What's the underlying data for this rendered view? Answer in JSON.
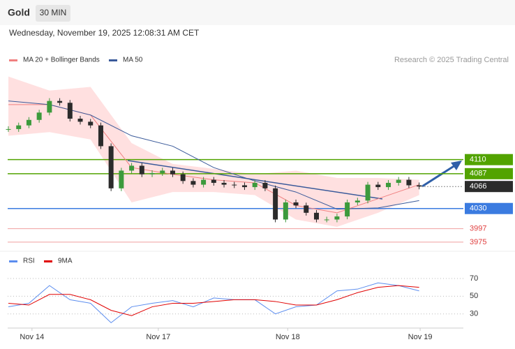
{
  "chart_data": {
    "type": "candlestick",
    "title": "Gold",
    "timeframe": "30 MIN",
    "subtitle": "Wednesday, November 19, 2025 12:08:31 AM CET",
    "source": "Research © 2025 Trading Central",
    "xlim": [
      0,
      40.5
    ],
    "xticks": [
      {
        "value": 2.3,
        "label": "Nov 14"
      },
      {
        "value": 14.6,
        "label": "Nov 17"
      },
      {
        "value": 27.2,
        "label": "Nov 18"
      },
      {
        "value": 40.1,
        "label": "Nov 19"
      }
    ],
    "ylim": [
      3960,
      4257
    ],
    "price": {
      "up_color": "#3c9a3c",
      "down_color": "#2b2b2b",
      "x": [
        0,
        1,
        2,
        3,
        4,
        5,
        6,
        7,
        8,
        9,
        10,
        11,
        12,
        13,
        14,
        15,
        16,
        17,
        18,
        19,
        20,
        21,
        22,
        23,
        24,
        25,
        26,
        27,
        28,
        29,
        30,
        31,
        32,
        33,
        34,
        35,
        36,
        37,
        38,
        39,
        40
      ],
      "values": [
        4160,
        4166,
        4175,
        4187,
        4206,
        4203,
        4177,
        4172,
        4166,
        4132,
        4063,
        4092,
        4100,
        4086,
        4088,
        4092,
        4086,
        4075,
        4069,
        4077,
        4072,
        4069,
        4068,
        4065,
        4072,
        4063,
        4012,
        4040,
        4035,
        4023,
        4012,
        4012,
        4017,
        4040,
        4043,
        4069,
        4065,
        4072,
        4077,
        4068,
        4066
      ]
    },
    "series": [
      {
        "name": "MA 20 + Bollinger Bands",
        "color": "#f08080",
        "band_color": "#ffe0e0",
        "x": [
          0,
          4,
          8,
          12,
          16,
          20,
          24,
          28,
          32,
          36,
          40
        ],
        "values": [
          4200,
          4200,
          4183,
          4097,
          4086,
          4077,
          4072,
          4035,
          4023,
          4046,
          4069
        ],
        "upper": [
          4246,
          4223,
          4229,
          4137,
          4103,
          4095,
          4086,
          4092,
          4080,
          4080,
          4077
        ],
        "lower": [
          4149,
          4155,
          4143,
          4040,
          4057,
          4057,
          4052,
          4012,
          4000,
          4023,
          4052
        ]
      },
      {
        "name": "MA 50",
        "color": "#3a5a9a",
        "x": [
          0,
          4,
          8,
          12,
          16,
          20,
          24,
          28,
          32,
          36,
          40
        ],
        "values": [
          4206,
          4200,
          4183,
          4149,
          4132,
          4097,
          4075,
          4057,
          4029,
          4031,
          4043
        ]
      }
    ],
    "levels": [
      {
        "value": 4110,
        "color": "#52a300",
        "boxed": true
      },
      {
        "value": 4087,
        "color": "#52a300",
        "boxed": true
      },
      {
        "value": 4066,
        "color": "#2b2b2b",
        "boxed": true,
        "dotted": true
      },
      {
        "value": 4030,
        "color": "#3b7be0",
        "boxed": true
      },
      {
        "value": 3997,
        "color": "#e04040",
        "boxed": false
      },
      {
        "value": 3975,
        "color": "#e04040",
        "boxed": false
      }
    ],
    "rsi": {
      "ylim": [
        14,
        81
      ],
      "yticks": [
        30,
        50,
        70
      ],
      "series": [
        {
          "name": "RSI",
          "color": "#5b8def",
          "x": [
            0,
            2,
            4,
            6,
            8,
            10,
            12,
            14,
            16,
            18,
            20,
            22,
            24,
            26,
            28,
            30,
            32,
            34,
            36,
            38,
            40
          ],
          "values": [
            38,
            42,
            62,
            46,
            42,
            20,
            38,
            42,
            45,
            38,
            48,
            46,
            46,
            30,
            38,
            40,
            56,
            58,
            65,
            62,
            56
          ]
        },
        {
          "name": "9MA",
          "color": "#e00000",
          "x": [
            0,
            2,
            4,
            6,
            8,
            10,
            12,
            14,
            16,
            18,
            20,
            22,
            24,
            26,
            28,
            30,
            32,
            34,
            36,
            38,
            40
          ],
          "values": [
            42,
            40,
            52,
            52,
            46,
            34,
            28,
            38,
            42,
            42,
            44,
            46,
            46,
            44,
            40,
            40,
            46,
            54,
            60,
            62,
            60
          ]
        }
      ]
    }
  }
}
